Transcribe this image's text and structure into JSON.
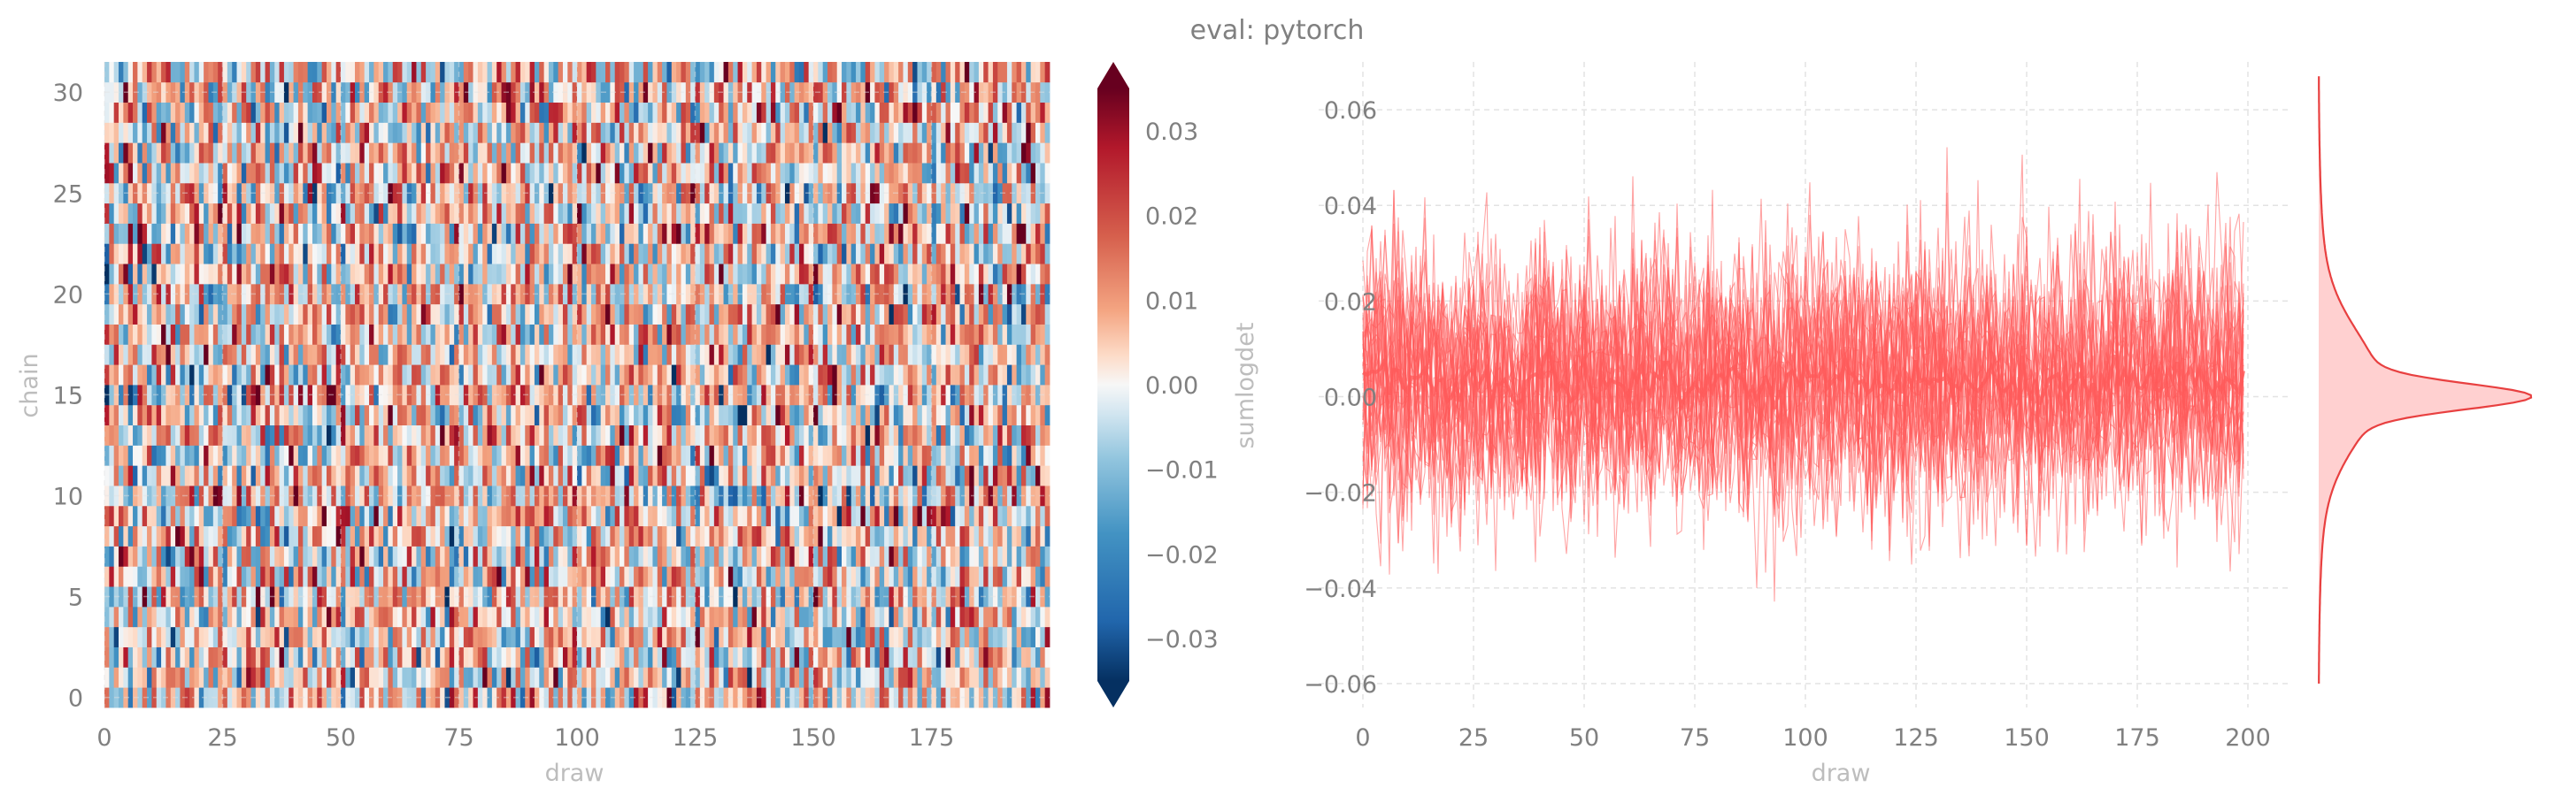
{
  "title": "eval: pytorch",
  "colors": {
    "trace": "#ff5a5a",
    "kde_fill": "#ffd0d0",
    "cmap_low": "#053061",
    "cmap_mid": "#f7f7f7",
    "cmap_high": "#67001f",
    "text": "#808080",
    "label": "#bdbdbd"
  },
  "chart_data": [
    {
      "type": "heatmap",
      "xlabel": "draw",
      "ylabel": "chain",
      "x_ticks": [
        0,
        25,
        50,
        75,
        100,
        125,
        150,
        175
      ],
      "y_ticks": [
        0,
        5,
        10,
        15,
        20,
        25,
        30
      ],
      "n_draws": 200,
      "n_chains": 32,
      "xlim": [
        0,
        200
      ],
      "ylim": [
        0,
        32
      ],
      "colorbar": {
        "label": "sumlogdet",
        "colormap": "RdBu_r",
        "range": [
          -0.035,
          0.035
        ],
        "ticks": [
          -0.03,
          -0.02,
          -0.01,
          0.0,
          0.01,
          0.02,
          0.03
        ],
        "tick_labels": [
          "−0.03",
          "−0.02",
          "−0.01",
          "0.00",
          "0.01",
          "0.02",
          "0.03"
        ],
        "extend": "both"
      },
      "value_distribution": {
        "mean": 0.003,
        "std": 0.014
      },
      "grid": true
    },
    {
      "type": "line",
      "xlabel": "draw",
      "ylabel": "",
      "x_ticks": [
        0,
        25,
        50,
        75,
        100,
        125,
        150,
        175,
        200
      ],
      "y_ticks": [
        -0.06,
        -0.04,
        -0.02,
        0.0,
        0.02,
        0.04,
        0.06
      ],
      "y_tick_labels": [
        "−0.06",
        "−0.04",
        "−0.02",
        "0.00",
        "0.02",
        "0.04",
        "0.06"
      ],
      "xlim": [
        -10,
        210
      ],
      "ylim": [
        -0.065,
        0.07
      ],
      "n_series": 32,
      "n_draws": 200,
      "series_style": "one thin translucent line per chain, thicker mean line",
      "mean_level": 0.003,
      "value_range": [
        -0.06,
        0.066
      ],
      "grid": true
    },
    {
      "type": "area",
      "subtype": "kde",
      "orientation": "vertical",
      "shares_y_with": "trace plot",
      "peak_at": 0.0,
      "support": [
        -0.06,
        0.067
      ]
    }
  ]
}
